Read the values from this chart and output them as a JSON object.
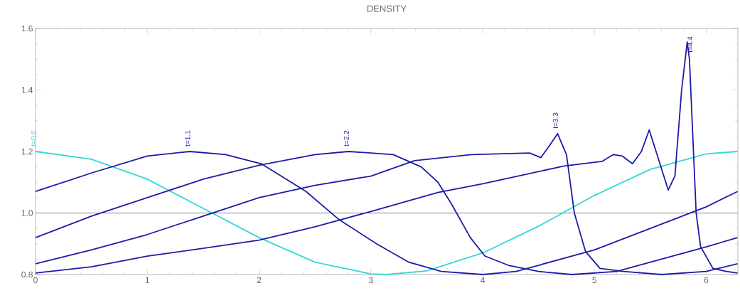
{
  "chart_data": {
    "type": "line",
    "title": "DENSITY",
    "xlim": [
      0,
      6.2832
    ],
    "ylim": [
      0.8,
      1.6
    ],
    "xticks": [
      0,
      1,
      2,
      3,
      4,
      5,
      6
    ],
    "yticks": [
      0.8,
      {
        "value": 1.0,
        "label": "1.0"
      },
      1.2,
      1.4,
      1.6
    ],
    "ref_lines": [
      {
        "axis": "y",
        "value": 1.0,
        "color": "#808080"
      }
    ],
    "grid": false,
    "legend": false,
    "marker": "none",
    "line_style": "solid",
    "series": [
      {
        "name": "t=0.0",
        "color": "#33d8d8",
        "x": [
          0,
          0.5,
          1,
          1.5,
          2,
          2.5,
          3,
          3.14,
          3.5,
          4,
          4.5,
          5,
          5.5,
          6,
          6.28
        ],
        "values": [
          1.2,
          1.175,
          1.11,
          1.015,
          0.92,
          0.84,
          0.802,
          0.8,
          0.812,
          0.87,
          0.957,
          1.057,
          1.142,
          1.192,
          1.2
        ]
      },
      {
        "name": "t=1.1",
        "color": "#1c1ca8",
        "x": [
          0,
          0.5,
          1,
          1.38,
          1.7,
          2.02,
          2.42,
          2.71,
          3.05,
          3.34,
          3.63,
          4,
          4.3,
          4.5,
          5,
          5.5,
          6,
          6.28
        ],
        "values": [
          1.07,
          1.13,
          1.185,
          1.2,
          1.19,
          1.16,
          1.07,
          0.98,
          0.9,
          0.84,
          0.81,
          0.8,
          0.81,
          0.83,
          0.88,
          0.95,
          1.02,
          1.07
        ]
      },
      {
        "name": "t=2.2",
        "color": "#1c1ca8",
        "x": [
          0,
          0.5,
          1,
          1.5,
          2,
          2.5,
          2.8,
          3.2,
          3.45,
          3.6,
          3.72,
          3.89,
          4.02,
          4.23,
          4.5,
          4.8,
          5.2,
          5.5,
          6,
          6.28
        ],
        "values": [
          0.92,
          0.99,
          1.05,
          1.11,
          1.155,
          1.19,
          1.2,
          1.19,
          1.15,
          1.1,
          1.03,
          0.92,
          0.86,
          0.83,
          0.81,
          0.8,
          0.81,
          0.84,
          0.89,
          0.92
        ]
      },
      {
        "name": "t=3.3",
        "color": "#1c1ca8",
        "x": [
          0,
          0.5,
          1,
          1.5,
          2,
          2.5,
          3,
          3.39,
          3.9,
          4.42,
          4.52,
          4.6,
          4.67,
          4.75,
          4.82,
          4.92,
          5.05,
          5.26,
          5.6,
          6,
          6.28
        ],
        "values": [
          0.835,
          0.88,
          0.93,
          0.99,
          1.05,
          1.09,
          1.12,
          1.17,
          1.19,
          1.195,
          1.18,
          1.22,
          1.258,
          1.19,
          1.0,
          0.875,
          0.82,
          0.81,
          0.8,
          0.81,
          0.835
        ]
      },
      {
        "name": "t=4.4",
        "color": "#1c1ca8",
        "x": [
          0,
          0.5,
          1,
          1.5,
          2,
          2.5,
          3,
          3.6,
          4,
          4.73,
          5.07,
          5.17,
          5.25,
          5.34,
          5.42,
          5.49,
          5.56,
          5.66,
          5.72,
          5.78,
          5.83,
          5.85,
          5.88,
          5.91,
          5.95,
          6.06,
          6.18,
          6.28
        ],
        "values": [
          0.805,
          0.825,
          0.86,
          0.885,
          0.912,
          0.955,
          1.005,
          1.067,
          1.095,
          1.153,
          1.168,
          1.19,
          1.185,
          1.16,
          1.2,
          1.27,
          1.19,
          1.075,
          1.12,
          1.4,
          1.556,
          1.5,
          1.25,
          1.0,
          0.89,
          0.82,
          0.81,
          0.805
        ]
      }
    ]
  }
}
